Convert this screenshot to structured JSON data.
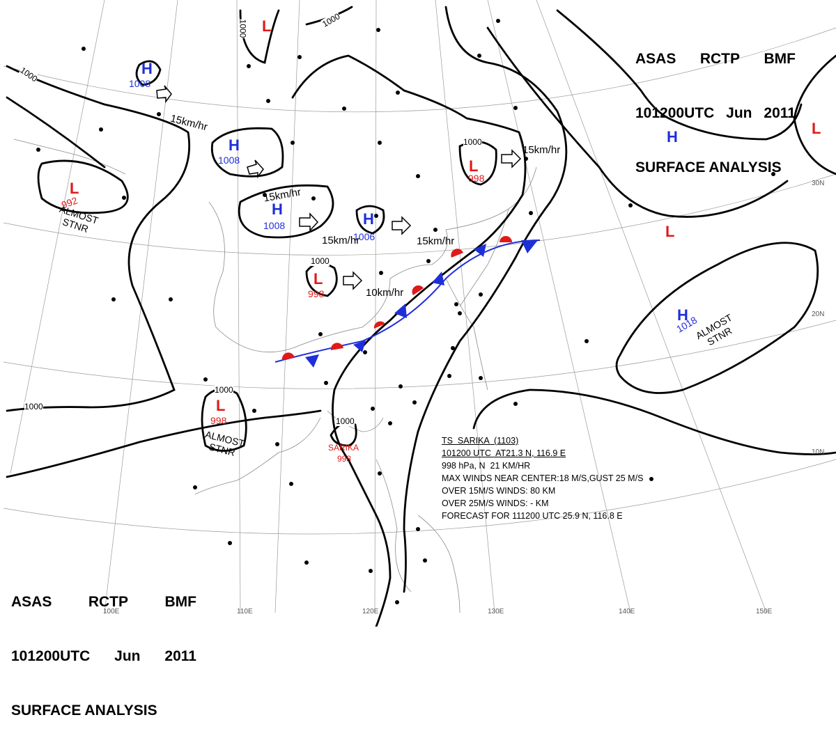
{
  "header": {
    "line1": [
      "ASAS",
      "RCTP",
      "BMF"
    ],
    "line2": [
      "101200UTC",
      "Jun",
      "2011"
    ],
    "line3": "SURFACE ANALYSIS"
  },
  "storm_info": {
    "name": "TS  SARIKA  (1103)",
    "position": "101200 UTC  AT21.3 N, 116.9 E",
    "pressure_motion": "998 hPa, N  21 KM/HR",
    "max_winds": "MAX WINDS NEAR CENTER:18 M/S,GUST 25 M/S",
    "over15": "OVER 15M/S WINDS: 80 KM",
    "over25": "OVER 25M/S WINDS: - KM",
    "forecast": "FORECAST FOR 111200 UTC 25.9 N, 116.8 E"
  },
  "pressure_systems": [
    {
      "id": "h1",
      "type": "H",
      "value": "1008",
      "motion": ""
    },
    {
      "id": "h2",
      "type": "H",
      "value": "1008",
      "motion": "15km/hr"
    },
    {
      "id": "h3",
      "type": "H",
      "value": "1008",
      "motion": "15km/hr"
    },
    {
      "id": "h4",
      "type": "H",
      "value": "1006",
      "motion": "15km/hr"
    },
    {
      "id": "h5",
      "type": "H",
      "value": "",
      "motion": ""
    },
    {
      "id": "h6",
      "type": "H",
      "value": "1018",
      "motion": ""
    },
    {
      "id": "l1",
      "type": "L",
      "value": "",
      "motion": ""
    },
    {
      "id": "l2",
      "type": "L",
      "value": "992",
      "motion": ""
    },
    {
      "id": "l3",
      "type": "L",
      "value": "998",
      "motion": "15km/hr"
    },
    {
      "id": "l4",
      "type": "L",
      "value": "998",
      "motion": "10km/hr"
    },
    {
      "id": "l5",
      "type": "L",
      "value": "998",
      "motion": ""
    },
    {
      "id": "l6",
      "type": "L",
      "value": "",
      "motion": ""
    },
    {
      "id": "l7",
      "type": "L",
      "value": "",
      "motion": ""
    }
  ],
  "notes": {
    "almost_stnr": "ALMOST\nSTNR",
    "sarika_label": "SARIKA",
    "sarika_pressure": "998",
    "movement_h1": "15km/hr",
    "movement_center": "15km/hr"
  },
  "isobar_labels": [
    "1000",
    "1000",
    "1000",
    "1000",
    "1000",
    "1000",
    "1000",
    "1000"
  ],
  "grid_labels": {
    "lon": [
      "110E",
      "120E",
      "130E",
      "140E",
      "150E"
    ],
    "lat": [
      "30N",
      "20N",
      "10N"
    ],
    "partial": [
      "100E"
    ]
  },
  "front": {
    "type": "stationary",
    "warm_color": "#e0191a",
    "cold_color": "#1f2fd8"
  },
  "colors": {
    "high": "#1f2fd8",
    "low": "#e0191a",
    "isobar": "#000000"
  }
}
